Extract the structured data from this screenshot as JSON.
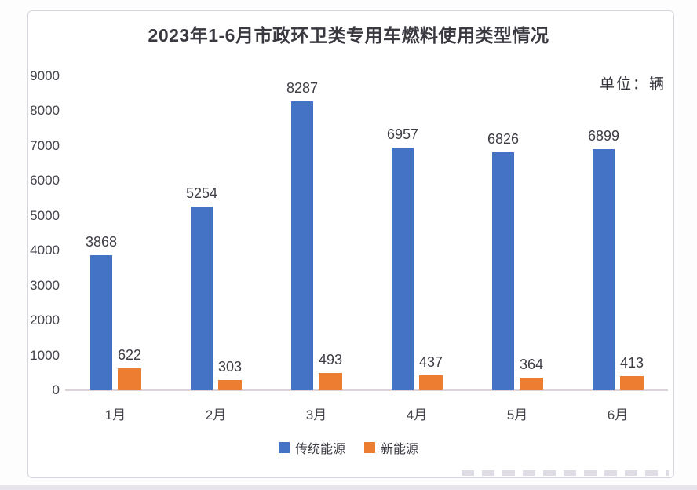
{
  "header": {
    "title": "2023年1-6月市政环卫类专用车燃料使用类型情况",
    "unit_label": "单位：辆"
  },
  "chart_data": {
    "type": "bar",
    "title": "2023年1-6月市政环卫类专用车燃料使用类型情况",
    "unit": "单位：辆",
    "categories": [
      "1月",
      "2月",
      "3月",
      "4月",
      "5月",
      "6月"
    ],
    "series": [
      {
        "name": "传统能源",
        "color": "#4472C4",
        "values": [
          3868,
          5254,
          8287,
          6957,
          6826,
          6899
        ]
      },
      {
        "name": "新能源",
        "color": "#ED7D31",
        "values": [
          622,
          303,
          493,
          437,
          364,
          413
        ]
      }
    ],
    "ylim": [
      0,
      9000
    ],
    "ytick_interval": 1000,
    "grid": false,
    "legend_position": "bottom",
    "data_labels": true,
    "text_color": "#45444c",
    "axis_line_color": "#dcd4da"
  }
}
